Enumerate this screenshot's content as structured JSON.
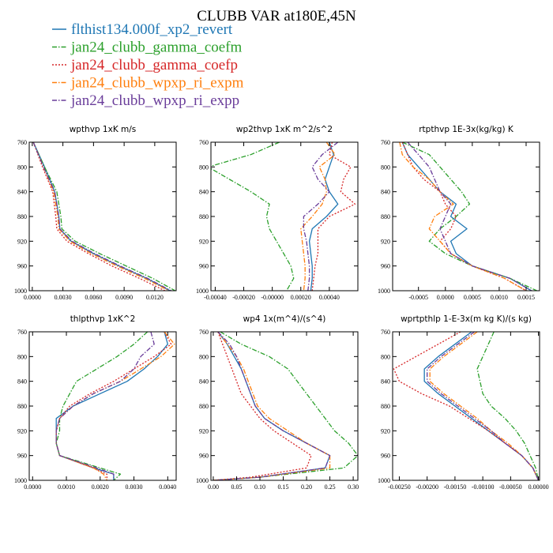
{
  "title": "CLUBB VAR at180E,45N",
  "legend": [
    {
      "name": "flthist134.000f_xp2_revert",
      "color": "#1f77b4",
      "dash": "solid"
    },
    {
      "name": "jan24_clubb_gamma_coefm",
      "color": "#2ca02c",
      "dash": "dashdot"
    },
    {
      "name": "jan24_clubb_gamma_coefp",
      "color": "#d62728",
      "dash": "dot"
    },
    {
      "name": "jan24_clubb_wpxp_ri_expm",
      "color": "#ff7f0e",
      "dash": "dashdot"
    },
    {
      "name": "jan24_clubb_wpxp_ri_expp",
      "color": "#6a3d9a",
      "dash": "dashdot"
    }
  ],
  "chart_data": [
    {
      "type": "line",
      "title": "wpthvp  1xK m/s",
      "xlim": [
        -0.0003,
        0.0141
      ],
      "ylim": [
        760,
        1000
      ],
      "y_reversed": true,
      "xticks": [
        "0.0000",
        "0.0030",
        "0.0060",
        "0.0090",
        "0.0120"
      ],
      "xtick_values": [
        0,
        0.003,
        0.006,
        0.009,
        0.012
      ],
      "yticks": [
        "760",
        "800",
        "840",
        "880",
        "920",
        "960",
        "1000"
      ],
      "ytick_values": [
        760,
        800,
        840,
        880,
        920,
        960,
        1000
      ],
      "y": [
        760,
        800,
        840,
        880,
        900,
        920,
        940,
        960,
        980,
        1000
      ],
      "series": [
        {
          "values": [
            0.0001,
            0.0012,
            0.0022,
            0.0026,
            0.0027,
            0.0038,
            0.006,
            0.0085,
            0.0112,
            0.0135
          ]
        },
        {
          "values": [
            0.0001,
            0.0012,
            0.0024,
            0.0028,
            0.0029,
            0.0042,
            0.0066,
            0.0092,
            0.0118,
            0.014
          ]
        },
        {
          "values": [
            0.0001,
            0.001,
            0.002,
            0.0023,
            0.0024,
            0.0034,
            0.0055,
            0.0078,
            0.0105,
            0.013
          ]
        },
        {
          "values": [
            0.0001,
            0.0011,
            0.0021,
            0.0025,
            0.0026,
            0.0037,
            0.0058,
            0.0083,
            0.011,
            0.0134
          ]
        },
        {
          "values": [
            0.0001,
            0.0011,
            0.0022,
            0.0026,
            0.0027,
            0.0039,
            0.0061,
            0.0086,
            0.0113,
            0.0136
          ]
        }
      ]
    },
    {
      "type": "line",
      "title": "wp2thvp  1xK m^2/s^2",
      "xlim": [
        -0.00043,
        0.0006
      ],
      "ylim": [
        760,
        1000
      ],
      "y_reversed": true,
      "xticks": [
        "-0.00040",
        "-0.00020",
        "-0.00000",
        "0.00020",
        "0.00040"
      ],
      "xtick_values": [
        -0.0004,
        -0.0002,
        0.0,
        0.0002,
        0.0004
      ],
      "yticks": [
        "760",
        "800",
        "840",
        "880",
        "920",
        "960",
        "1000"
      ],
      "ytick_values": [
        760,
        800,
        840,
        880,
        920,
        960,
        1000
      ],
      "y": [
        760,
        780,
        800,
        820,
        840,
        860,
        880,
        900,
        920,
        940,
        960,
        980,
        1000
      ],
      "series": [
        {
          "values": [
            0.0004,
            0.00043,
            0.0004,
            0.00037,
            0.0004,
            0.00046,
            0.00038,
            0.00028,
            0.00026,
            0.00027,
            0.00028,
            0.00028,
            0.00027
          ]
        },
        {
          "values": [
            5e-05,
            -0.00015,
            -0.00045,
            -0.0003,
            -0.00015,
            -2e-05,
            -4e-05,
            -2e-05,
            3e-05,
            8e-05,
            0.00013,
            0.00015,
            0.0001
          ]
        },
        {
          "values": [
            0.00042,
            0.0004,
            0.00055,
            0.0005,
            0.00048,
            0.00058,
            0.0004,
            0.00032,
            0.00032,
            0.00032,
            0.0003,
            0.00029,
            0.00028
          ]
        },
        {
          "values": [
            0.00038,
            0.00044,
            0.00033,
            0.00037,
            0.00038,
            0.00035,
            0.00028,
            0.0002,
            0.00021,
            0.00022,
            0.00023,
            0.00023,
            0.00022
          ]
        },
        {
          "values": [
            0.00046,
            0.00035,
            0.00028,
            0.00032,
            0.0004,
            0.00032,
            0.00022,
            0.00022,
            0.00024,
            0.00025,
            0.00026,
            0.00026,
            0.00025
          ]
        }
      ]
    },
    {
      "type": "line",
      "title": "rtpthvp  1E-3x(kg/kg) K",
      "xlim": [
        -0.00098,
        0.00175
      ],
      "ylim": [
        760,
        1000
      ],
      "y_reversed": true,
      "xticks": [
        "-0.0005",
        "0.0000",
        "0.0005",
        "0.0010",
        "0.0015"
      ],
      "xtick_values": [
        -0.0005,
        0.0,
        0.0005,
        0.001,
        0.0015
      ],
      "yticks": [
        "760",
        "800",
        "840",
        "880",
        "920",
        "960",
        "1000"
      ],
      "ytick_values": [
        760,
        800,
        840,
        880,
        920,
        960,
        1000
      ],
      "y": [
        760,
        780,
        800,
        820,
        840,
        860,
        880,
        900,
        920,
        940,
        960,
        980,
        1000
      ],
      "series": [
        {
          "values": [
            -0.0008,
            -0.0007,
            -0.0005,
            -0.0003,
            -0.0001,
            0.0002,
            0.0001,
            0.0004,
            0.0001,
            0.0002,
            0.0005,
            0.0012,
            0.0016
          ]
        },
        {
          "values": [
            -0.0008,
            -0.0003,
            -0.0001,
            0.0001,
            0.0003,
            0.00045,
            0.0002,
            -0.0001,
            -0.0003,
            0.0,
            0.0005,
            0.0012,
            0.0017
          ]
        },
        {
          "values": [
            -0.0008,
            -0.0007,
            -0.0006,
            -0.0004,
            -0.0001,
            0.0,
            0.0002,
            0.0001,
            -0.0001,
            0.0001,
            0.0005,
            0.0011,
            0.0015
          ]
        },
        {
          "values": [
            -0.00085,
            -0.0008,
            -0.0006,
            -0.0003,
            -0.0001,
            0.00015,
            -0.0002,
            -0.0003,
            -0.0001,
            0.0001,
            0.0005,
            0.0011,
            0.0015
          ]
        },
        {
          "values": [
            -0.0007,
            -0.0005,
            -0.0003,
            -0.0002,
            -0.0001,
            0.0001,
            0.0,
            -0.0001,
            0.0,
            0.0001,
            0.0005,
            0.0012,
            0.0016
          ]
        }
      ]
    },
    {
      "type": "line",
      "title": "thlpthvp  1xK^2",
      "xlim": [
        -0.0001,
        0.00425
      ],
      "ylim": [
        760,
        1000
      ],
      "y_reversed": true,
      "xticks": [
        "0.0000",
        "0.0010",
        "0.0020",
        "0.0030",
        "0.0040"
      ],
      "xtick_values": [
        0.0,
        0.001,
        0.002,
        0.003,
        0.004
      ],
      "yticks": [
        "760",
        "800",
        "840",
        "880",
        "920",
        "960",
        "1000"
      ],
      "ytick_values": [
        760,
        800,
        840,
        880,
        920,
        960,
        1000
      ],
      "y": [
        760,
        780,
        800,
        820,
        840,
        860,
        880,
        900,
        920,
        940,
        960,
        980,
        990,
        1000
      ],
      "series": [
        {
          "values": [
            0.0039,
            0.004,
            0.0037,
            0.0033,
            0.0028,
            0.002,
            0.0012,
            0.0007,
            0.0007,
            0.0007,
            0.0008,
            0.0018,
            0.0024,
            0.0024
          ]
        },
        {
          "values": [
            0.0034,
            0.003,
            0.0025,
            0.0019,
            0.0013,
            0.0011,
            0.0009,
            0.0008,
            0.0008,
            0.0007,
            0.0008,
            0.002,
            0.0026,
            0.0024
          ]
        },
        {
          "values": [
            0.0039,
            0.0041,
            0.0036,
            0.003,
            0.0024,
            0.0017,
            0.0011,
            0.0008,
            0.0007,
            0.0007,
            0.0008,
            0.0018,
            0.0022,
            0.0022
          ]
        },
        {
          "values": [
            0.0039,
            0.0042,
            0.0038,
            0.0032,
            0.0026,
            0.0018,
            0.0012,
            0.0008,
            0.0007,
            0.0007,
            0.0008,
            0.0018,
            0.0021,
            0.0022
          ]
        },
        {
          "values": [
            0.0035,
            0.0036,
            0.0032,
            0.003,
            0.0026,
            0.0018,
            0.0012,
            0.0008,
            0.0007,
            0.0007,
            0.0008,
            0.0019,
            0.0024,
            0.0024
          ]
        }
      ]
    },
    {
      "type": "line",
      "title": "wp4  1x(m^4)/(s^4)",
      "xlim": [
        -0.005,
        0.31
      ],
      "ylim": [
        760,
        1000
      ],
      "y_reversed": true,
      "xticks": [
        "0.00",
        "0.05",
        "0.10",
        "0.15",
        "0.20",
        "0.25",
        "0.30"
      ],
      "xtick_values": [
        0.0,
        0.05,
        0.1,
        0.15,
        0.2,
        0.25,
        0.3
      ],
      "yticks": [
        "760",
        "800",
        "840",
        "880",
        "920",
        "960",
        "1000"
      ],
      "ytick_values": [
        760,
        800,
        840,
        880,
        920,
        960,
        1000
      ],
      "y": [
        760,
        780,
        800,
        820,
        840,
        860,
        880,
        900,
        920,
        940,
        960,
        980,
        995,
        1000
      ],
      "series": [
        {
          "values": [
            0.01,
            0.03,
            0.045,
            0.06,
            0.07,
            0.08,
            0.09,
            0.11,
            0.15,
            0.2,
            0.25,
            0.24,
            0.1,
            0.0
          ]
        },
        {
          "values": [
            0.015,
            0.06,
            0.12,
            0.16,
            0.18,
            0.2,
            0.22,
            0.24,
            0.26,
            0.29,
            0.31,
            0.28,
            0.1,
            0.0
          ]
        },
        {
          "values": [
            0.01,
            0.02,
            0.03,
            0.04,
            0.05,
            0.06,
            0.08,
            0.1,
            0.13,
            0.17,
            0.21,
            0.2,
            0.08,
            0.0
          ]
        },
        {
          "values": [
            0.01,
            0.03,
            0.05,
            0.065,
            0.075,
            0.085,
            0.095,
            0.12,
            0.16,
            0.2,
            0.25,
            0.25,
            0.1,
            0.0
          ]
        },
        {
          "values": [
            0.01,
            0.035,
            0.05,
            0.06,
            0.07,
            0.08,
            0.09,
            0.11,
            0.15,
            0.2,
            0.25,
            0.24,
            0.1,
            0.0
          ]
        }
      ]
    },
    {
      "type": "line",
      "title": "wprtpthlp  1-E-3x(m kg K)/(s kg)",
      "xlim": [
        -0.00262,
        2e-05
      ],
      "ylim": [
        760,
        1000
      ],
      "y_reversed": true,
      "xticks": [
        "-0.00250",
        "-0.00200",
        "-0.00150",
        "-0.00100",
        "-0.00050",
        "0.00000"
      ],
      "xtick_values": [
        -0.0025,
        -0.002,
        -0.0015,
        -0.001,
        -0.0005,
        0.0
      ],
      "yticks": [
        "760",
        "800",
        "840",
        "880",
        "920",
        "960",
        "1000"
      ],
      "ytick_values": [
        760,
        800,
        840,
        880,
        920,
        960,
        1000
      ],
      "y": [
        760,
        780,
        800,
        820,
        840,
        860,
        880,
        900,
        920,
        940,
        960,
        980,
        1000
      ],
      "series": [
        {
          "values": [
            -0.0012,
            -0.0015,
            -0.0018,
            -0.00205,
            -0.00205,
            -0.0018,
            -0.0015,
            -0.0012,
            -0.0009,
            -0.0006,
            -0.0003,
            -0.0001,
            0.0
          ]
        },
        {
          "values": [
            -0.0008,
            -0.0009,
            -0.001,
            -0.0011,
            -0.00105,
            -0.001,
            -0.00085,
            -0.0006,
            -0.0004,
            -0.00025,
            -0.00015,
            -5e-05,
            0.0
          ]
        },
        {
          "values": [
            -0.0014,
            -0.0018,
            -0.0022,
            -0.0026,
            -0.0025,
            -0.0021,
            -0.0016,
            -0.00125,
            -0.0009,
            -0.0006,
            -0.0003,
            -0.0001,
            0.0
          ]
        },
        {
          "values": [
            -0.0011,
            -0.0014,
            -0.0017,
            -0.00195,
            -0.00195,
            -0.0017,
            -0.0014,
            -0.0011,
            -0.00085,
            -0.00055,
            -0.0003,
            -0.0001,
            0.0
          ]
        },
        {
          "values": [
            -0.00115,
            -0.00145,
            -0.00175,
            -0.002,
            -0.002,
            -0.00175,
            -0.00145,
            -0.00115,
            -0.00085,
            -0.0006,
            -0.0003,
            -0.0001,
            0.0
          ]
        }
      ]
    }
  ]
}
